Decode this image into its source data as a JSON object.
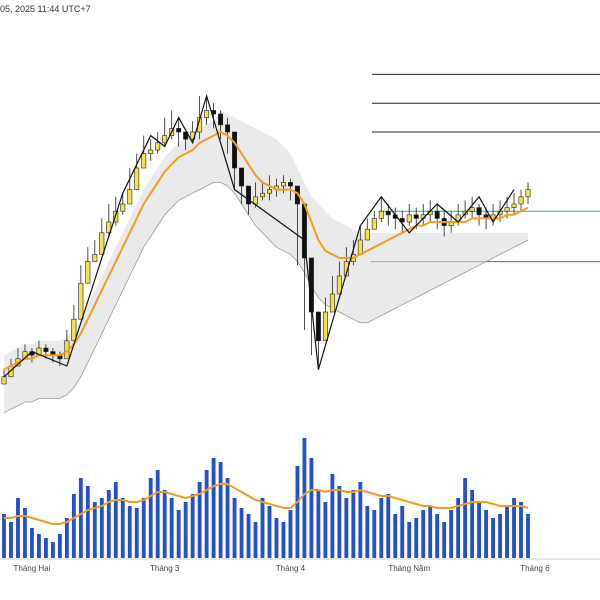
{
  "header": {
    "timestamp": "05, 2025 11:44 UTC+7"
  },
  "colors": {
    "candle_up": "#f5e14a",
    "candle_down": "#111111",
    "candle_outline": "#222222",
    "ma": "#f39c1f",
    "band_fill": "#d9d9d9",
    "band_edge": "#9a9a9a",
    "zigzag": "#111111",
    "volume": "#2451c7",
    "volume_ma": "#f39c1f",
    "level_line": "#222222",
    "support_green": "#2db36b",
    "support_red": "#d9304a"
  },
  "chart_data": {
    "type": "candlestick",
    "x_axis_labels": [
      {
        "label": "Tháng Hai",
        "index": 4
      },
      {
        "label": "Tháng 3",
        "index": 23
      },
      {
        "label": "Tháng 4",
        "index": 41
      },
      {
        "label": "Tháng Năm",
        "index": 58
      },
      {
        "label": "Tháng 6",
        "index": 76
      }
    ],
    "price_range": [
      0,
      100
    ],
    "closes": [
      12,
      15,
      17,
      19,
      18,
      20,
      19,
      18,
      17,
      22,
      28,
      38,
      44,
      46,
      52,
      55,
      58,
      60,
      64,
      70,
      74,
      75,
      77,
      79,
      81,
      80,
      78,
      80,
      84,
      86,
      85,
      82,
      80,
      70,
      65,
      60,
      62,
      63,
      64,
      65,
      66,
      65,
      60,
      45,
      30,
      22,
      30,
      35,
      40,
      44,
      46,
      50,
      53,
      56,
      58,
      57,
      56,
      55,
      57,
      56,
      57,
      58,
      56,
      54,
      55,
      57,
      58,
      59,
      57,
      56,
      57,
      58,
      59,
      60,
      62,
      64
    ],
    "highs": [
      14,
      17,
      20,
      21,
      20,
      22,
      21,
      20,
      19,
      25,
      32,
      43,
      48,
      50,
      56,
      60,
      62,
      63,
      70,
      74,
      79,
      78,
      80,
      84,
      86,
      84,
      80,
      83,
      90,
      90,
      88,
      86,
      84,
      76,
      68,
      63,
      66,
      66,
      68,
      67,
      68,
      67,
      63,
      50,
      35,
      28,
      34,
      40,
      44,
      48,
      50,
      54,
      56,
      58,
      62,
      60,
      59,
      58,
      60,
      59,
      60,
      61,
      60,
      58,
      58,
      60,
      61,
      62,
      60,
      59,
      60,
      61,
      62,
      63,
      64,
      66
    ],
    "lows": [
      11,
      13,
      15,
      17,
      16,
      18,
      17,
      16,
      15,
      17,
      24,
      33,
      40,
      44,
      48,
      51,
      54,
      57,
      60,
      64,
      70,
      72,
      74,
      76,
      78,
      76,
      75,
      77,
      78,
      82,
      81,
      78,
      74,
      64,
      60,
      57,
      59,
      61,
      61,
      62,
      63,
      61,
      43,
      25,
      18,
      14,
      24,
      32,
      36,
      41,
      43,
      47,
      50,
      53,
      55,
      54,
      53,
      52,
      54,
      53,
      54,
      55,
      53,
      51,
      52,
      54,
      56,
      56,
      54,
      53,
      54,
      55,
      56,
      57,
      58,
      60
    ],
    "ma": [
      14,
      15,
      16,
      17,
      17,
      18,
      18,
      18,
      18,
      19,
      21,
      24,
      28,
      32,
      36,
      40,
      44,
      48,
      52,
      56,
      60,
      63,
      66,
      69,
      71,
      73,
      74,
      75,
      77,
      78,
      79,
      80,
      79,
      77,
      74,
      71,
      68,
      66,
      65,
      64,
      64,
      64,
      63,
      60,
      55,
      50,
      47,
      46,
      45,
      45,
      45,
      46,
      47,
      48,
      49,
      50,
      51,
      52,
      53,
      54,
      54,
      55,
      55,
      55,
      55,
      55,
      55,
      56,
      56,
      56,
      56,
      56,
      57,
      57,
      58,
      59
    ],
    "band_upper": [
      null,
      null,
      null,
      null,
      null,
      null,
      null,
      null,
      null,
      null,
      null,
      null,
      null,
      null,
      null,
      null,
      null,
      null,
      null,
      null,
      null,
      null,
      null,
      null,
      null,
      null,
      null,
      null,
      null,
      null,
      null,
      86,
      85,
      84,
      83,
      82,
      81,
      80,
      79,
      78,
      76,
      74,
      70,
      66,
      62,
      60,
      58,
      56,
      55,
      54,
      53,
      52,
      52,
      52,
      52,
      52,
      52,
      52,
      52,
      52,
      52,
      52,
      52,
      52,
      52,
      52,
      52,
      52,
      52,
      52,
      52,
      52,
      52,
      52,
      52,
      52
    ],
    "band_lower": [
      2,
      3,
      4,
      5,
      5,
      6,
      6,
      6,
      6,
      7,
      9,
      12,
      16,
      20,
      24,
      28,
      32,
      36,
      40,
      44,
      48,
      51,
      54,
      57,
      59,
      61,
      62,
      63,
      64,
      65,
      66,
      66,
      65,
      63,
      60,
      57,
      54,
      52,
      50,
      48,
      47,
      46,
      44,
      41,
      37,
      34,
      32,
      31,
      30,
      29,
      28,
      27,
      27,
      28,
      29,
      30,
      31,
      32,
      33,
      34,
      35,
      36,
      37,
      38,
      39,
      40,
      41,
      42,
      43,
      44,
      45,
      46,
      47,
      48,
      49,
      50
    ],
    "zigzag": [
      [
        0,
        12
      ],
      [
        4,
        19
      ],
      [
        9,
        15
      ],
      [
        17,
        63
      ],
      [
        21,
        79
      ],
      [
        23,
        76
      ],
      [
        25,
        84
      ],
      [
        27,
        77
      ],
      [
        29,
        90
      ],
      [
        33,
        64
      ],
      [
        43,
        50
      ],
      [
        45,
        14
      ],
      [
        51,
        54
      ],
      [
        54,
        62
      ],
      [
        58,
        52
      ],
      [
        62,
        60
      ],
      [
        65,
        55
      ],
      [
        68,
        62
      ],
      [
        70,
        55
      ],
      [
        73,
        64
      ]
    ],
    "horizontal_levels": [
      96,
      88,
      80,
      58,
      44
    ],
    "volume": [
      22,
      18,
      30,
      25,
      15,
      12,
      10,
      8,
      12,
      20,
      32,
      40,
      36,
      28,
      30,
      34,
      38,
      30,
      26,
      25,
      30,
      40,
      44,
      34,
      30,
      24,
      28,
      32,
      38,
      44,
      50,
      48,
      40,
      30,
      25,
      22,
      18,
      30,
      26,
      20,
      18,
      24,
      46,
      60,
      50,
      34,
      28,
      42,
      36,
      30,
      34,
      38,
      26,
      24,
      30,
      32,
      22,
      26,
      18,
      20,
      24,
      26,
      22,
      18,
      24,
      30,
      40,
      34,
      28,
      24,
      20,
      22,
      26,
      30,
      28,
      22
    ],
    "volume_ma": [
      20,
      20,
      21,
      21,
      20,
      19,
      18,
      17,
      17,
      18,
      20,
      22,
      24,
      25,
      26,
      28,
      29,
      29,
      28,
      28,
      29,
      31,
      33,
      33,
      32,
      31,
      30,
      31,
      32,
      34,
      36,
      37,
      37,
      35,
      33,
      31,
      29,
      28,
      27,
      26,
      25,
      25,
      28,
      32,
      34,
      34,
      33,
      34,
      34,
      33,
      33,
      34,
      33,
      32,
      31,
      31,
      30,
      29,
      28,
      27,
      26,
      26,
      25,
      25,
      25,
      26,
      27,
      28,
      28,
      28,
      27,
      26,
      26,
      26,
      26,
      25
    ]
  }
}
